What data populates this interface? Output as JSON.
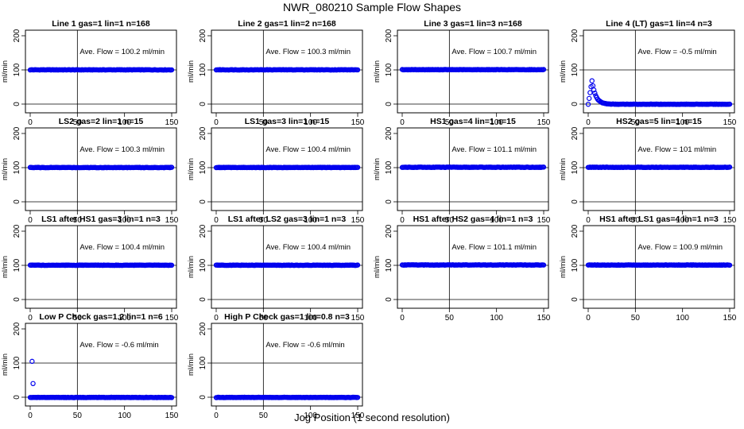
{
  "figure": {
    "title": "NWR_080210  Sample Flow Shapes",
    "xlabel": "Jog Position (1 second resolution)"
  },
  "colors": {
    "points": "#0000ee",
    "axes": "#000000"
  },
  "chart_data": [
    {
      "type": "scatter",
      "title": "Line 1 gas=1 lin=1 n=168",
      "ylabel": "ml/min",
      "annotation": "Ave. Flow = 100.2  ml/min",
      "xlim": [
        0,
        150
      ],
      "ylim": [
        0,
        200
      ],
      "xticks": [
        0,
        50,
        100,
        150
      ],
      "yticks": [
        0,
        100,
        200
      ],
      "vline": 50,
      "hlines": [
        0,
        100
      ],
      "series": [
        {
          "shape": "flat",
          "level": 100.2,
          "n": 151
        }
      ]
    },
    {
      "type": "scatter",
      "title": "Line 2 gas=1 lin=2 n=168",
      "ylabel": "ml/min",
      "annotation": "Ave. Flow = 100.3  ml/min",
      "xlim": [
        0,
        150
      ],
      "ylim": [
        0,
        200
      ],
      "xticks": [
        0,
        50,
        100,
        150
      ],
      "yticks": [
        0,
        100,
        200
      ],
      "vline": 50,
      "hlines": [
        0,
        100
      ],
      "series": [
        {
          "shape": "flat",
          "level": 100.3,
          "n": 151
        }
      ]
    },
    {
      "type": "scatter",
      "title": "Line 3 gas=1 lin=3 n=168",
      "ylabel": "ml/min",
      "annotation": "Ave. Flow = 100.7  ml/min",
      "xlim": [
        0,
        150
      ],
      "ylim": [
        0,
        200
      ],
      "xticks": [
        0,
        50,
        100,
        150
      ],
      "yticks": [
        0,
        100,
        200
      ],
      "vline": 50,
      "hlines": [
        0,
        100
      ],
      "series": [
        {
          "shape": "flat",
          "level": 100.7,
          "n": 151
        }
      ]
    },
    {
      "type": "scatter",
      "title": "Line 4 (LT) gas=1 lin=4 n=3",
      "ylabel": "ml/min",
      "annotation": "Ave. Flow = -0.5  ml/min",
      "xlim": [
        0,
        150
      ],
      "ylim": [
        0,
        200
      ],
      "xticks": [
        0,
        50,
        100,
        150
      ],
      "yticks": [
        0,
        100,
        200
      ],
      "vline": 50,
      "hlines": [
        0,
        100
      ],
      "series": [
        {
          "shape": "decay",
          "level": -0.5,
          "peak": 68,
          "peak_x": 4,
          "tau": 4,
          "n": 151
        }
      ]
    },
    {
      "type": "scatter",
      "title": "LS2 gas=2 lin=1 n=15",
      "ylabel": "ml/min",
      "annotation": "Ave. Flow = 100.3  ml/min",
      "xlim": [
        0,
        150
      ],
      "ylim": [
        0,
        200
      ],
      "xticks": [
        0,
        50,
        100,
        150
      ],
      "yticks": [
        0,
        100,
        200
      ],
      "vline": 50,
      "hlines": [
        0,
        100
      ],
      "series": [
        {
          "shape": "flat",
          "level": 100.3,
          "n": 151
        }
      ]
    },
    {
      "type": "scatter",
      "title": "LS1 gas=3 lin=1 n=15",
      "ylabel": "ml/min",
      "annotation": "Ave. Flow = 100.4  ml/min",
      "xlim": [
        0,
        150
      ],
      "ylim": [
        0,
        200
      ],
      "xticks": [
        0,
        50,
        100,
        150
      ],
      "yticks": [
        0,
        100,
        200
      ],
      "vline": 50,
      "hlines": [
        0,
        100
      ],
      "series": [
        {
          "shape": "flat",
          "level": 100.4,
          "n": 151
        }
      ]
    },
    {
      "type": "scatter",
      "title": "HS1 gas=4 lin=1 n=15",
      "ylabel": "ml/min",
      "annotation": "Ave. Flow = 101.1  ml/min",
      "xlim": [
        0,
        150
      ],
      "ylim": [
        0,
        200
      ],
      "xticks": [
        0,
        50,
        100,
        150
      ],
      "yticks": [
        0,
        100,
        200
      ],
      "vline": 50,
      "hlines": [
        0,
        100
      ],
      "series": [
        {
          "shape": "flat",
          "level": 101.1,
          "n": 151
        }
      ]
    },
    {
      "type": "scatter",
      "title": "HS2 gas=5 lin=1 n=15",
      "ylabel": "ml/min",
      "annotation": "Ave. Flow = 101  ml/min",
      "xlim": [
        0,
        150
      ],
      "ylim": [
        0,
        200
      ],
      "xticks": [
        0,
        50,
        100,
        150
      ],
      "yticks": [
        0,
        100,
        200
      ],
      "vline": 50,
      "hlines": [
        0,
        100
      ],
      "series": [
        {
          "shape": "flat",
          "level": 101,
          "n": 151
        }
      ]
    },
    {
      "type": "scatter",
      "title": "LS1 after HS1 gas=3 lin=1 n=3",
      "ylabel": "ml/min",
      "annotation": "Ave. Flow = 100.4  ml/min",
      "xlim": [
        0,
        150
      ],
      "ylim": [
        0,
        200
      ],
      "xticks": [
        0,
        50,
        100,
        150
      ],
      "yticks": [
        0,
        100,
        200
      ],
      "vline": 50,
      "hlines": [
        0,
        100
      ],
      "series": [
        {
          "shape": "flat",
          "level": 100.4,
          "n": 151
        }
      ]
    },
    {
      "type": "scatter",
      "title": "LS1 after LS2 gas=3 lin=1 n=3",
      "ylabel": "ml/min",
      "annotation": "Ave. Flow = 100.4  ml/min",
      "xlim": [
        0,
        150
      ],
      "ylim": [
        0,
        200
      ],
      "xticks": [
        0,
        50,
        100,
        150
      ],
      "yticks": [
        0,
        100,
        200
      ],
      "vline": 50,
      "hlines": [
        0,
        100
      ],
      "series": [
        {
          "shape": "flat",
          "level": 100.4,
          "n": 151
        }
      ]
    },
    {
      "type": "scatter",
      "title": "HS1 after HS2 gas=4 lin=1 n=3",
      "ylabel": "ml/min",
      "annotation": "Ave. Flow = 101.1  ml/min",
      "xlim": [
        0,
        150
      ],
      "ylim": [
        0,
        200
      ],
      "xticks": [
        0,
        50,
        100,
        150
      ],
      "yticks": [
        0,
        100,
        200
      ],
      "vline": 50,
      "hlines": [
        0,
        100
      ],
      "series": [
        {
          "shape": "flat",
          "level": 101.1,
          "n": 151
        }
      ]
    },
    {
      "type": "scatter",
      "title": "HS1 after LS1 gas=4 lin=1 n=3",
      "ylabel": "ml/min",
      "annotation": "Ave. Flow = 100.9  ml/min",
      "xlim": [
        0,
        150
      ],
      "ylim": [
        0,
        200
      ],
      "xticks": [
        0,
        50,
        100,
        150
      ],
      "yticks": [
        0,
        100,
        200
      ],
      "vline": 50,
      "hlines": [
        0,
        100
      ],
      "series": [
        {
          "shape": "flat",
          "level": 100.9,
          "n": 151
        }
      ]
    },
    {
      "type": "scatter",
      "title": "Low P Check gas=1.2 lin=1 n=6",
      "ylabel": "ml/min",
      "annotation": "Ave. Flow = -0.6  ml/min",
      "xlim": [
        0,
        150
      ],
      "ylim": [
        0,
        200
      ],
      "xticks": [
        0,
        50,
        100,
        150
      ],
      "yticks": [
        0,
        100,
        200
      ],
      "vline": 50,
      "hlines": [
        0,
        100
      ],
      "series": [
        {
          "shape": "flat",
          "level": -0.6,
          "n": 151,
          "outliers": [
            [
              2,
              105
            ],
            [
              3,
              40
            ]
          ]
        }
      ]
    },
    {
      "type": "scatter",
      "title": "High P Check gas=1 lin=0.8 n=3",
      "ylabel": "ml/min",
      "annotation": "Ave. Flow = -0.6  ml/min",
      "xlim": [
        0,
        150
      ],
      "ylim": [
        0,
        200
      ],
      "xticks": [
        0,
        50,
        100,
        150
      ],
      "yticks": [
        0,
        100,
        200
      ],
      "vline": 50,
      "hlines": [
        0,
        100
      ],
      "series": [
        {
          "shape": "flat",
          "level": -0.6,
          "n": 151
        }
      ]
    }
  ]
}
